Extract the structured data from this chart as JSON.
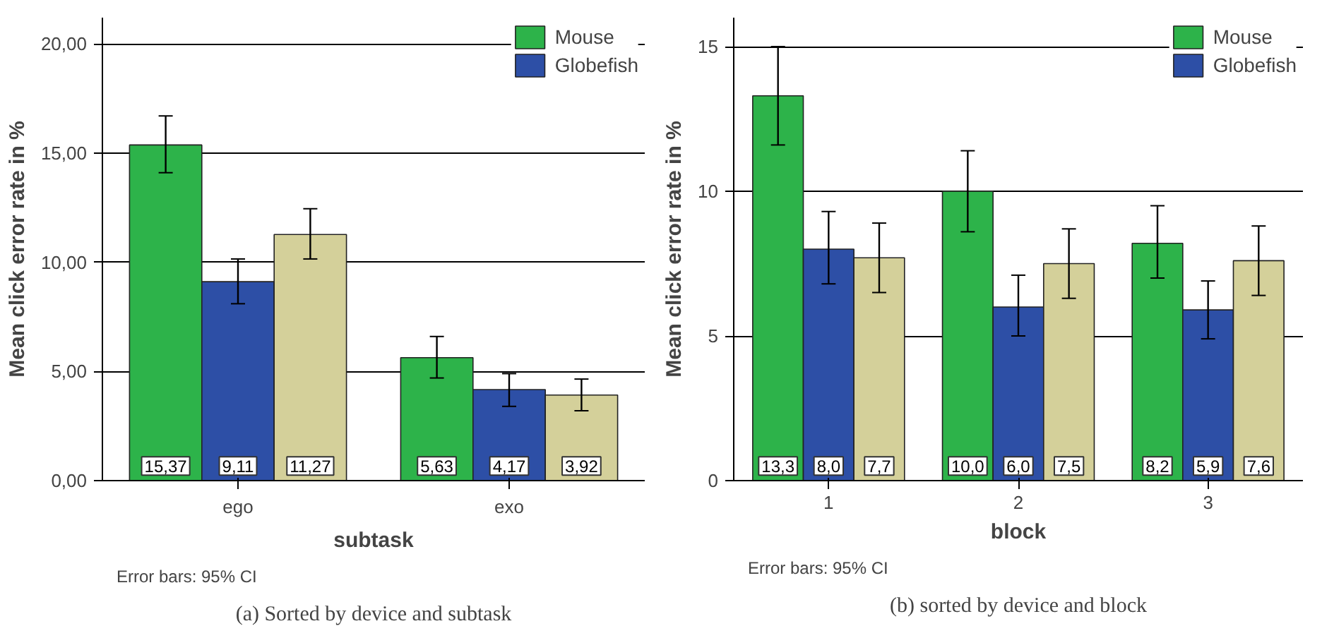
{
  "chart_data": [
    {
      "type": "bar",
      "categories": [
        "ego",
        "exo"
      ],
      "xlabel": "subtask",
      "ylabel": "Mean click error rate in %",
      "ylim": [
        0,
        21.2
      ],
      "yticks": [
        {
          "value": 0,
          "label": "0,00"
        },
        {
          "value": 5,
          "label": "5,00"
        },
        {
          "value": 10,
          "label": "10,00"
        },
        {
          "value": 15,
          "label": "15,00"
        },
        {
          "value": 20,
          "label": "20,00"
        }
      ],
      "grid": "y",
      "legend": "top right",
      "series": [
        {
          "name": "Mouse",
          "color": "#2db34a",
          "values": [
            15.37,
            5.63
          ],
          "errors": [
            [
              14.1,
              16.7
            ],
            [
              4.7,
              6.6
            ]
          ],
          "value_labels": [
            "15,37",
            "5,63"
          ]
        },
        {
          "name": "Globefish",
          "color": "#2d4fa6",
          "values": [
            9.11,
            4.17
          ],
          "errors": [
            [
              8.1,
              10.15
            ],
            [
              3.4,
              4.9
            ]
          ],
          "value_labels": [
            "9,11",
            "4,17"
          ]
        },
        {
          "color": "#d4d09a",
          "values": [
            11.27,
            3.92
          ],
          "errors": [
            [
              10.15,
              12.45
            ],
            [
              3.2,
              4.65
            ]
          ],
          "value_labels": [
            "11,27",
            "3,92"
          ]
        }
      ],
      "annotations": [
        "Error bars: 95% CI",
        "(a) Sorted by device and subtask"
      ]
    },
    {
      "type": "bar",
      "categories": [
        "1",
        "2",
        "3"
      ],
      "xlabel": "block",
      "ylabel": "Mean click error rate in %",
      "ylim": [
        0,
        16.0
      ],
      "yticks": [
        0,
        5,
        10,
        15
      ],
      "grid": "y",
      "legend": "top right",
      "series": [
        {
          "name": "Mouse",
          "color": "#2db34a",
          "values": [
            13.3,
            10.0,
            8.2
          ],
          "errors": [
            [
              11.6,
              15.0
            ],
            [
              8.6,
              11.4
            ],
            [
              7.0,
              9.5
            ]
          ],
          "value_labels": [
            "13,3",
            "10,0",
            "8,2"
          ]
        },
        {
          "name": "Globefish",
          "color": "#2d4fa6",
          "values": [
            8.0,
            6.0,
            5.9
          ],
          "errors": [
            [
              6.8,
              9.3
            ],
            [
              5.0,
              7.1
            ],
            [
              4.9,
              6.9
            ]
          ],
          "value_labels": [
            "8,0",
            "6,0",
            "5,9"
          ]
        },
        {
          "color": "#d4d09a",
          "values": [
            7.7,
            7.5,
            7.6
          ],
          "errors": [
            [
              6.5,
              8.9
            ],
            [
              6.3,
              8.7
            ],
            [
              6.4,
              8.8
            ]
          ],
          "value_labels": [
            "7,7",
            "7,5",
            "7,6"
          ]
        }
      ],
      "annotations": [
        "Error bars: 95% CI",
        "(b) sorted by device and block"
      ]
    }
  ]
}
